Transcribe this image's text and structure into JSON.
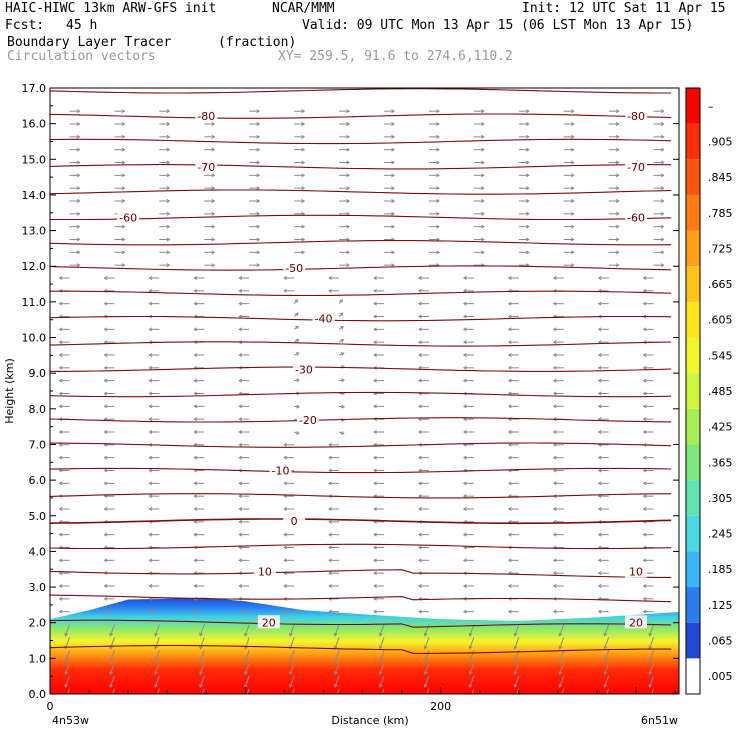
{
  "header": {
    "model": "HAIC-HIWC 13km ARW-GFS init",
    "org": "NCAR/MMM",
    "init": "Init: 12 UTC Sat 11 Apr 15",
    "fcst_label": "Fcst:",
    "fcst_value": "45 h",
    "valid": "Valid: 09 UTC Mon 13 Apr 15 (06 LST Mon 13 Apr 15)",
    "field": "Boundary Layer Tracer",
    "field_units": "(fraction)",
    "vectors": "Circulation vectors",
    "xy": "XY= 259.5, 91.6 to 274.6,110.2"
  },
  "chart_data": {
    "type": "heatmap",
    "title": "Boundary Layer Tracer",
    "xlabel": "Distance (km)",
    "ylabel": "Height (km)",
    "xlim": [
      0,
      322
    ],
    "ylim": [
      0,
      17
    ],
    "x_ticks": [
      {
        "value": 0,
        "label": "0"
      },
      {
        "value": 200,
        "label": "200"
      }
    ],
    "x_end_labels": {
      "left": "4n53w",
      "right": "6n51w"
    },
    "y_ticks": [
      0,
      1,
      2,
      3,
      4,
      5,
      6,
      7,
      8,
      9,
      10,
      11,
      12,
      13,
      14,
      15,
      16,
      17
    ],
    "y_tick_labels": [
      "0.0",
      "1.0",
      "2.0",
      "3.0",
      "4.0",
      "5.0",
      "6.0",
      "7.0",
      "8.0",
      "9.0",
      "10.0",
      "11.0",
      "12.0",
      "13.0",
      "14.0",
      "15.0",
      "16.0",
      "17.0"
    ],
    "colorbar": {
      "labels": [
        ".005",
        ".065",
        ".125",
        ".185",
        ".245",
        ".305",
        ".365",
        ".425",
        ".485",
        ".545",
        ".605",
        ".665",
        ".725",
        ".785",
        ".845",
        ".905",
        "–"
      ],
      "colors": [
        "#ffffff",
        "#1e4ad9",
        "#2a7ff0",
        "#38b6f5",
        "#4ad9e0",
        "#5fe6b0",
        "#7de87a",
        "#a6ee52",
        "#cdf53c",
        "#f0f52c",
        "#ffe41e",
        "#ffc31a",
        "#ffa014",
        "#ff7a10",
        "#ff540c",
        "#ff2e08",
        "#ff0000"
      ]
    },
    "isotherms_degC": {
      "labels": [
        {
          "value": -80,
          "text": "-80"
        },
        {
          "value": -70,
          "text": "-70"
        },
        {
          "value": -60,
          "text": "-60"
        },
        {
          "value": -50,
          "text": "-50"
        },
        {
          "value": -40,
          "text": "-40"
        },
        {
          "value": -30,
          "text": "-30"
        },
        {
          "value": -20,
          "text": "-20"
        },
        {
          "value": -10,
          "text": "-10"
        },
        {
          "value": 0,
          "text": "0"
        },
        {
          "value": 10,
          "text": "10"
        },
        {
          "value": 20,
          "text": "20"
        }
      ]
    },
    "tracer_top_km": [
      [
        0,
        2.1
      ],
      [
        20,
        2.35
      ],
      [
        40,
        2.65
      ],
      [
        80,
        2.7
      ],
      [
        100,
        2.6
      ],
      [
        130,
        2.35
      ],
      [
        170,
        2.2
      ],
      [
        200,
        2.1
      ],
      [
        240,
        2.05
      ],
      [
        280,
        2.15
      ],
      [
        322,
        2.3
      ]
    ],
    "grid": false,
    "legend": "colorbar-right"
  }
}
